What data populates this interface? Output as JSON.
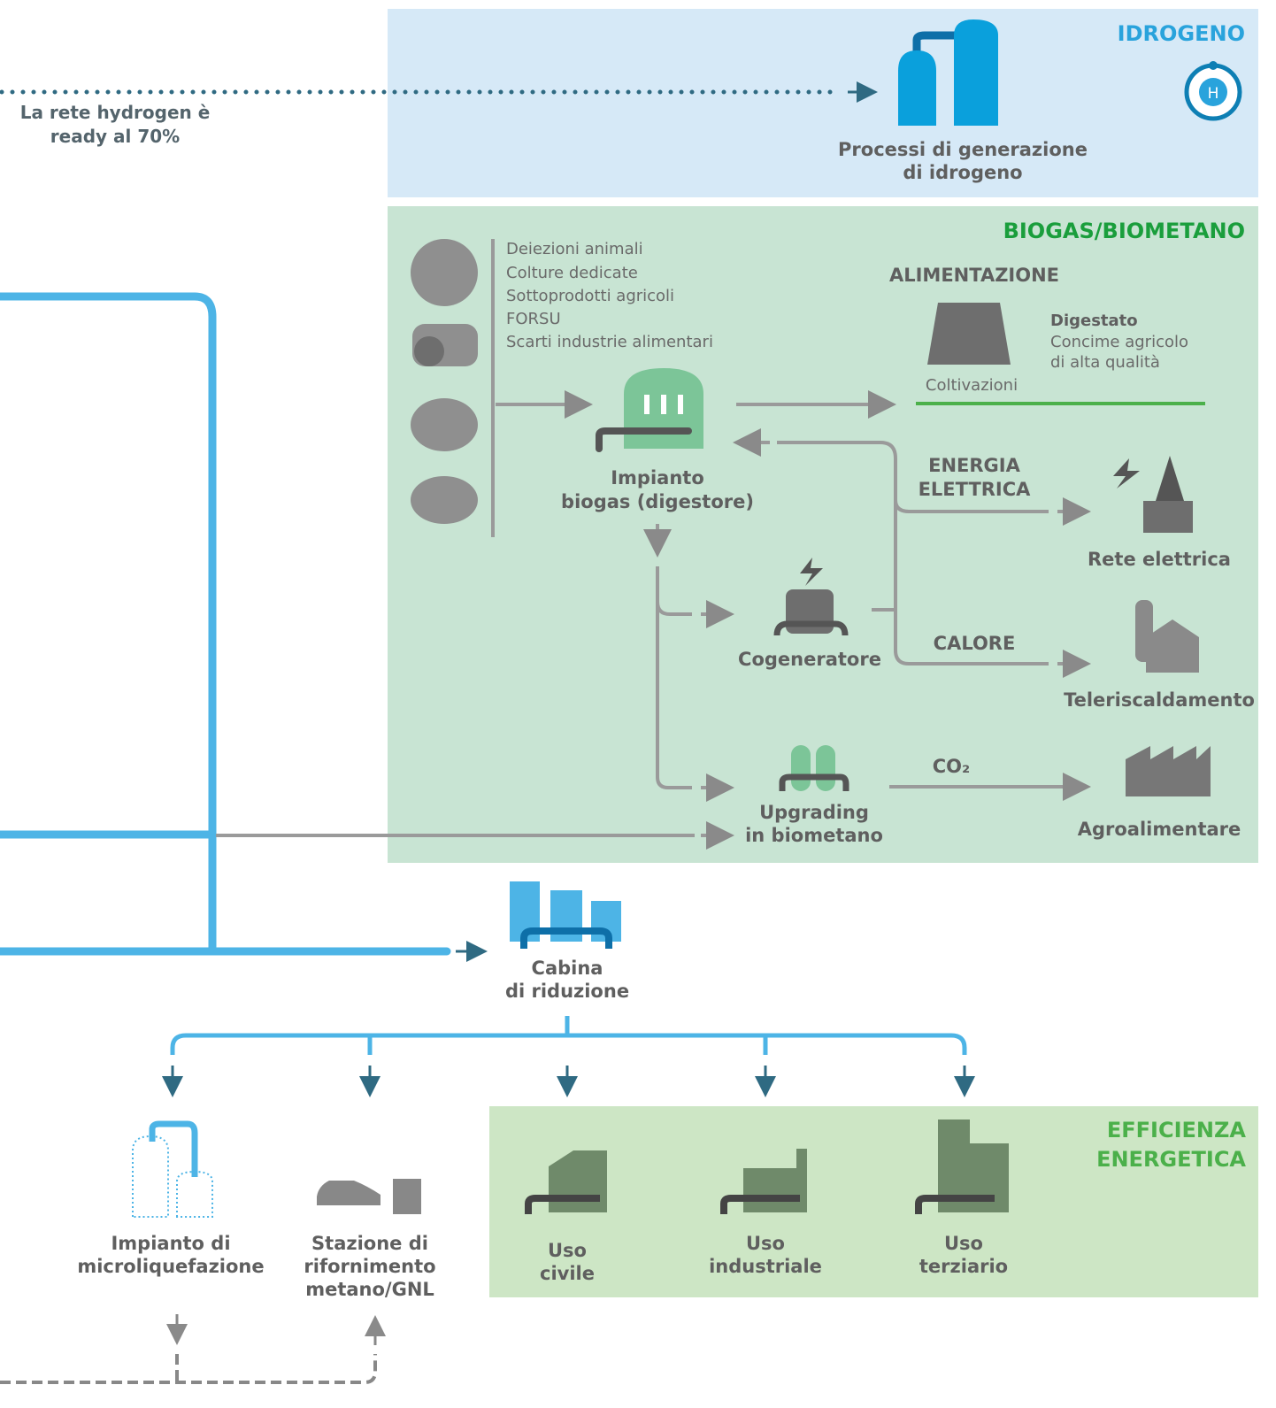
{
  "hydrogen": {
    "title": "IDROGENO",
    "note": [
      "La rete hydrogen è",
      "ready al 70%"
    ],
    "process": [
      "Processi di generazione",
      "di idrogeno"
    ],
    "icon": "H"
  },
  "biogas": {
    "title": "BIOGAS/BIOMETANO",
    "feedstock": [
      "Deiezioni animali",
      "Colture dedicate",
      "Sottoprodotti agricoli",
      "FORSU",
      "Scarti industrie alimentari"
    ],
    "alimentazione": "ALIMENTAZIONE",
    "coltivazioni": "Coltivazioni",
    "digestato": {
      "title": "Digestato",
      "lines": [
        "Concime agricolo",
        "di alta qualità"
      ]
    },
    "impianto": [
      "Impianto",
      "biogas (digestore)"
    ],
    "energia": [
      "ENERGIA",
      "ELETTRICA"
    ],
    "rete": "Rete elettrica",
    "cogeneratore": "Cogeneratore",
    "calore": "CALORE",
    "teleriscaldamento": "Teleriscaldamento",
    "upgrading": [
      "Upgrading",
      "in biometano"
    ],
    "co2": "CO₂",
    "agro": "Agroalimentare"
  },
  "cabina": [
    "Cabina",
    "di riduzione"
  ],
  "microliquefazione": [
    "Impianto di",
    "microliquefazione"
  ],
  "stazione": [
    "Stazione di",
    "rifornimento",
    "metano/GNL"
  ],
  "efficienza": {
    "title": [
      "EFFICIENZA",
      "ENERGETICA"
    ],
    "civile": [
      "Uso",
      "civile"
    ],
    "industriale": [
      "Uso",
      "industriale"
    ],
    "terziario": [
      "Uso",
      "terziario"
    ]
  }
}
